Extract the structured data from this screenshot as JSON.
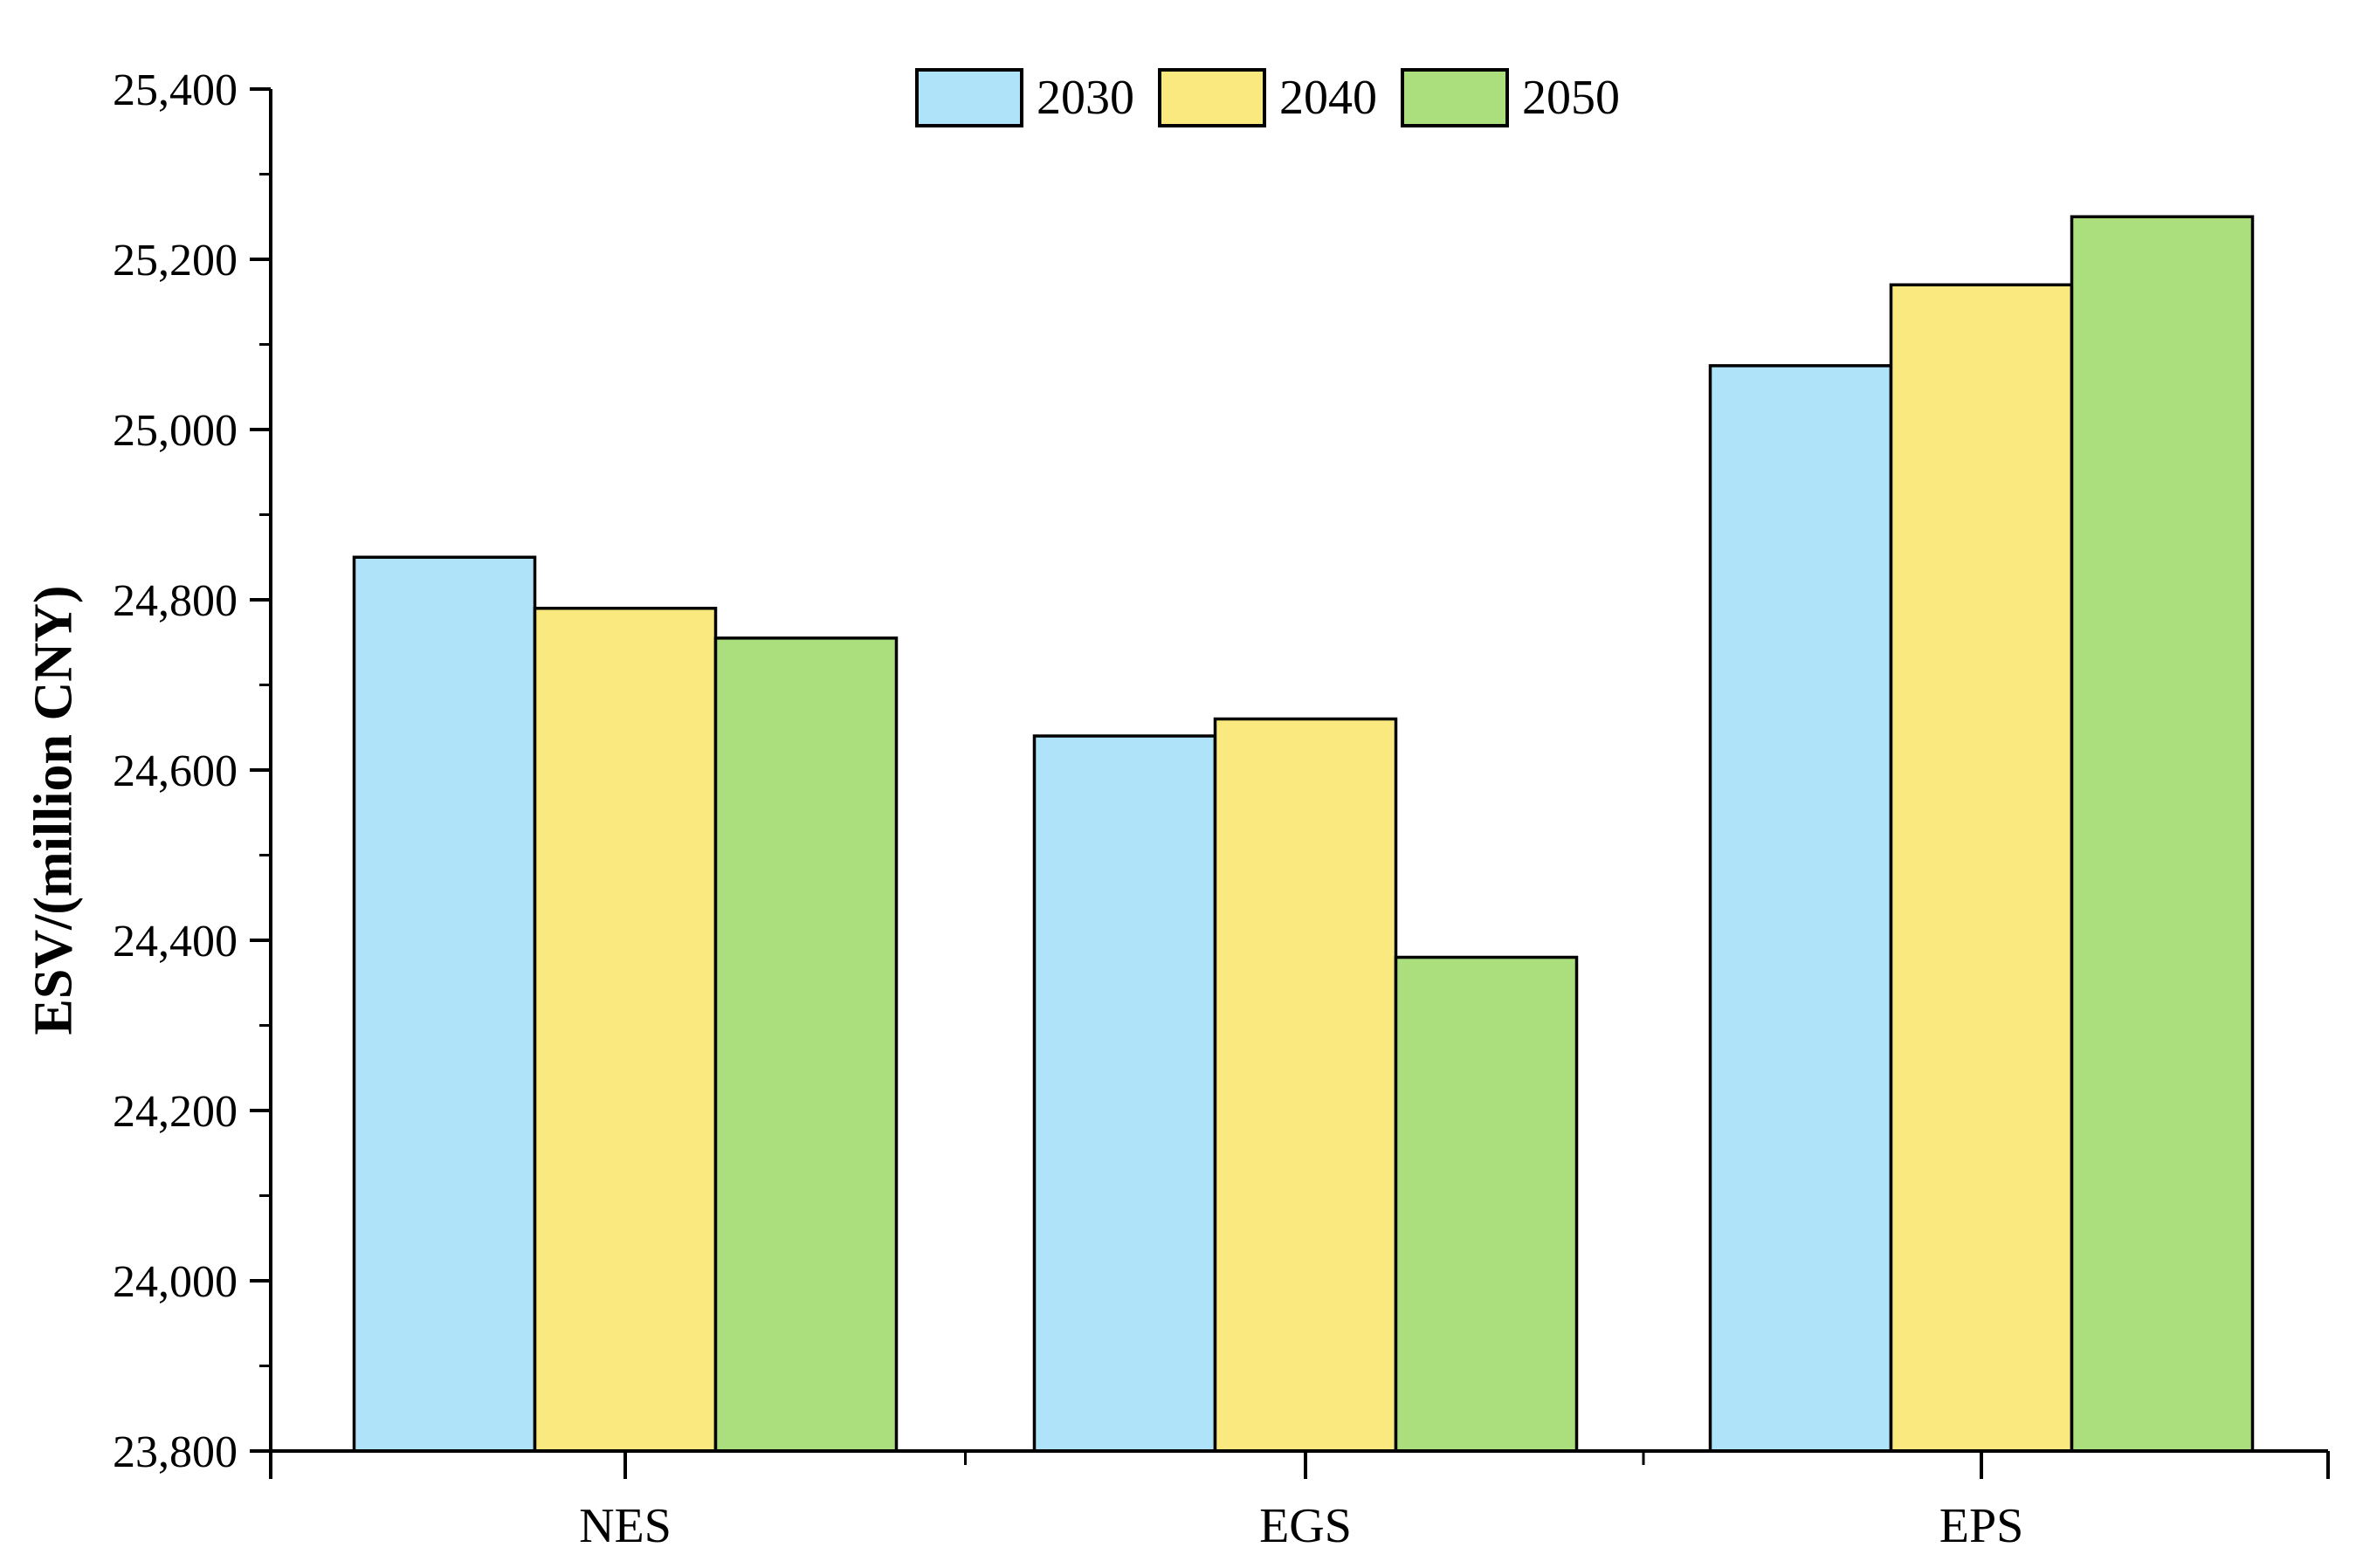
{
  "chart_data": {
    "type": "bar",
    "title": "",
    "xlabel": "",
    "ylabel": "ESV/(million CNY)",
    "categories": [
      "NES",
      "EGS",
      "EPS"
    ],
    "series": [
      {
        "name": "2030",
        "color": "#AEE3FA",
        "values": [
          24850,
          24640,
          25075
        ]
      },
      {
        "name": "2040",
        "color": "#FAE97E",
        "values": [
          24790,
          24660,
          25170
        ]
      },
      {
        "name": "2050",
        "color": "#ABDF7E",
        "values": [
          24755,
          24380,
          25250
        ]
      }
    ],
    "ylim": [
      23800,
      25400
    ],
    "y_major_step": 200,
    "y_minor_step": 100,
    "y_tick_labels": [
      "23,800",
      "24,000",
      "24,200",
      "24,400",
      "24,600",
      "24,800",
      "25,000",
      "25,200",
      "25,400"
    ],
    "legend_position": "top-center",
    "grid": false,
    "bar_edge_color": "#000000",
    "axis_color": "#000000",
    "background": "#ffffff"
  }
}
